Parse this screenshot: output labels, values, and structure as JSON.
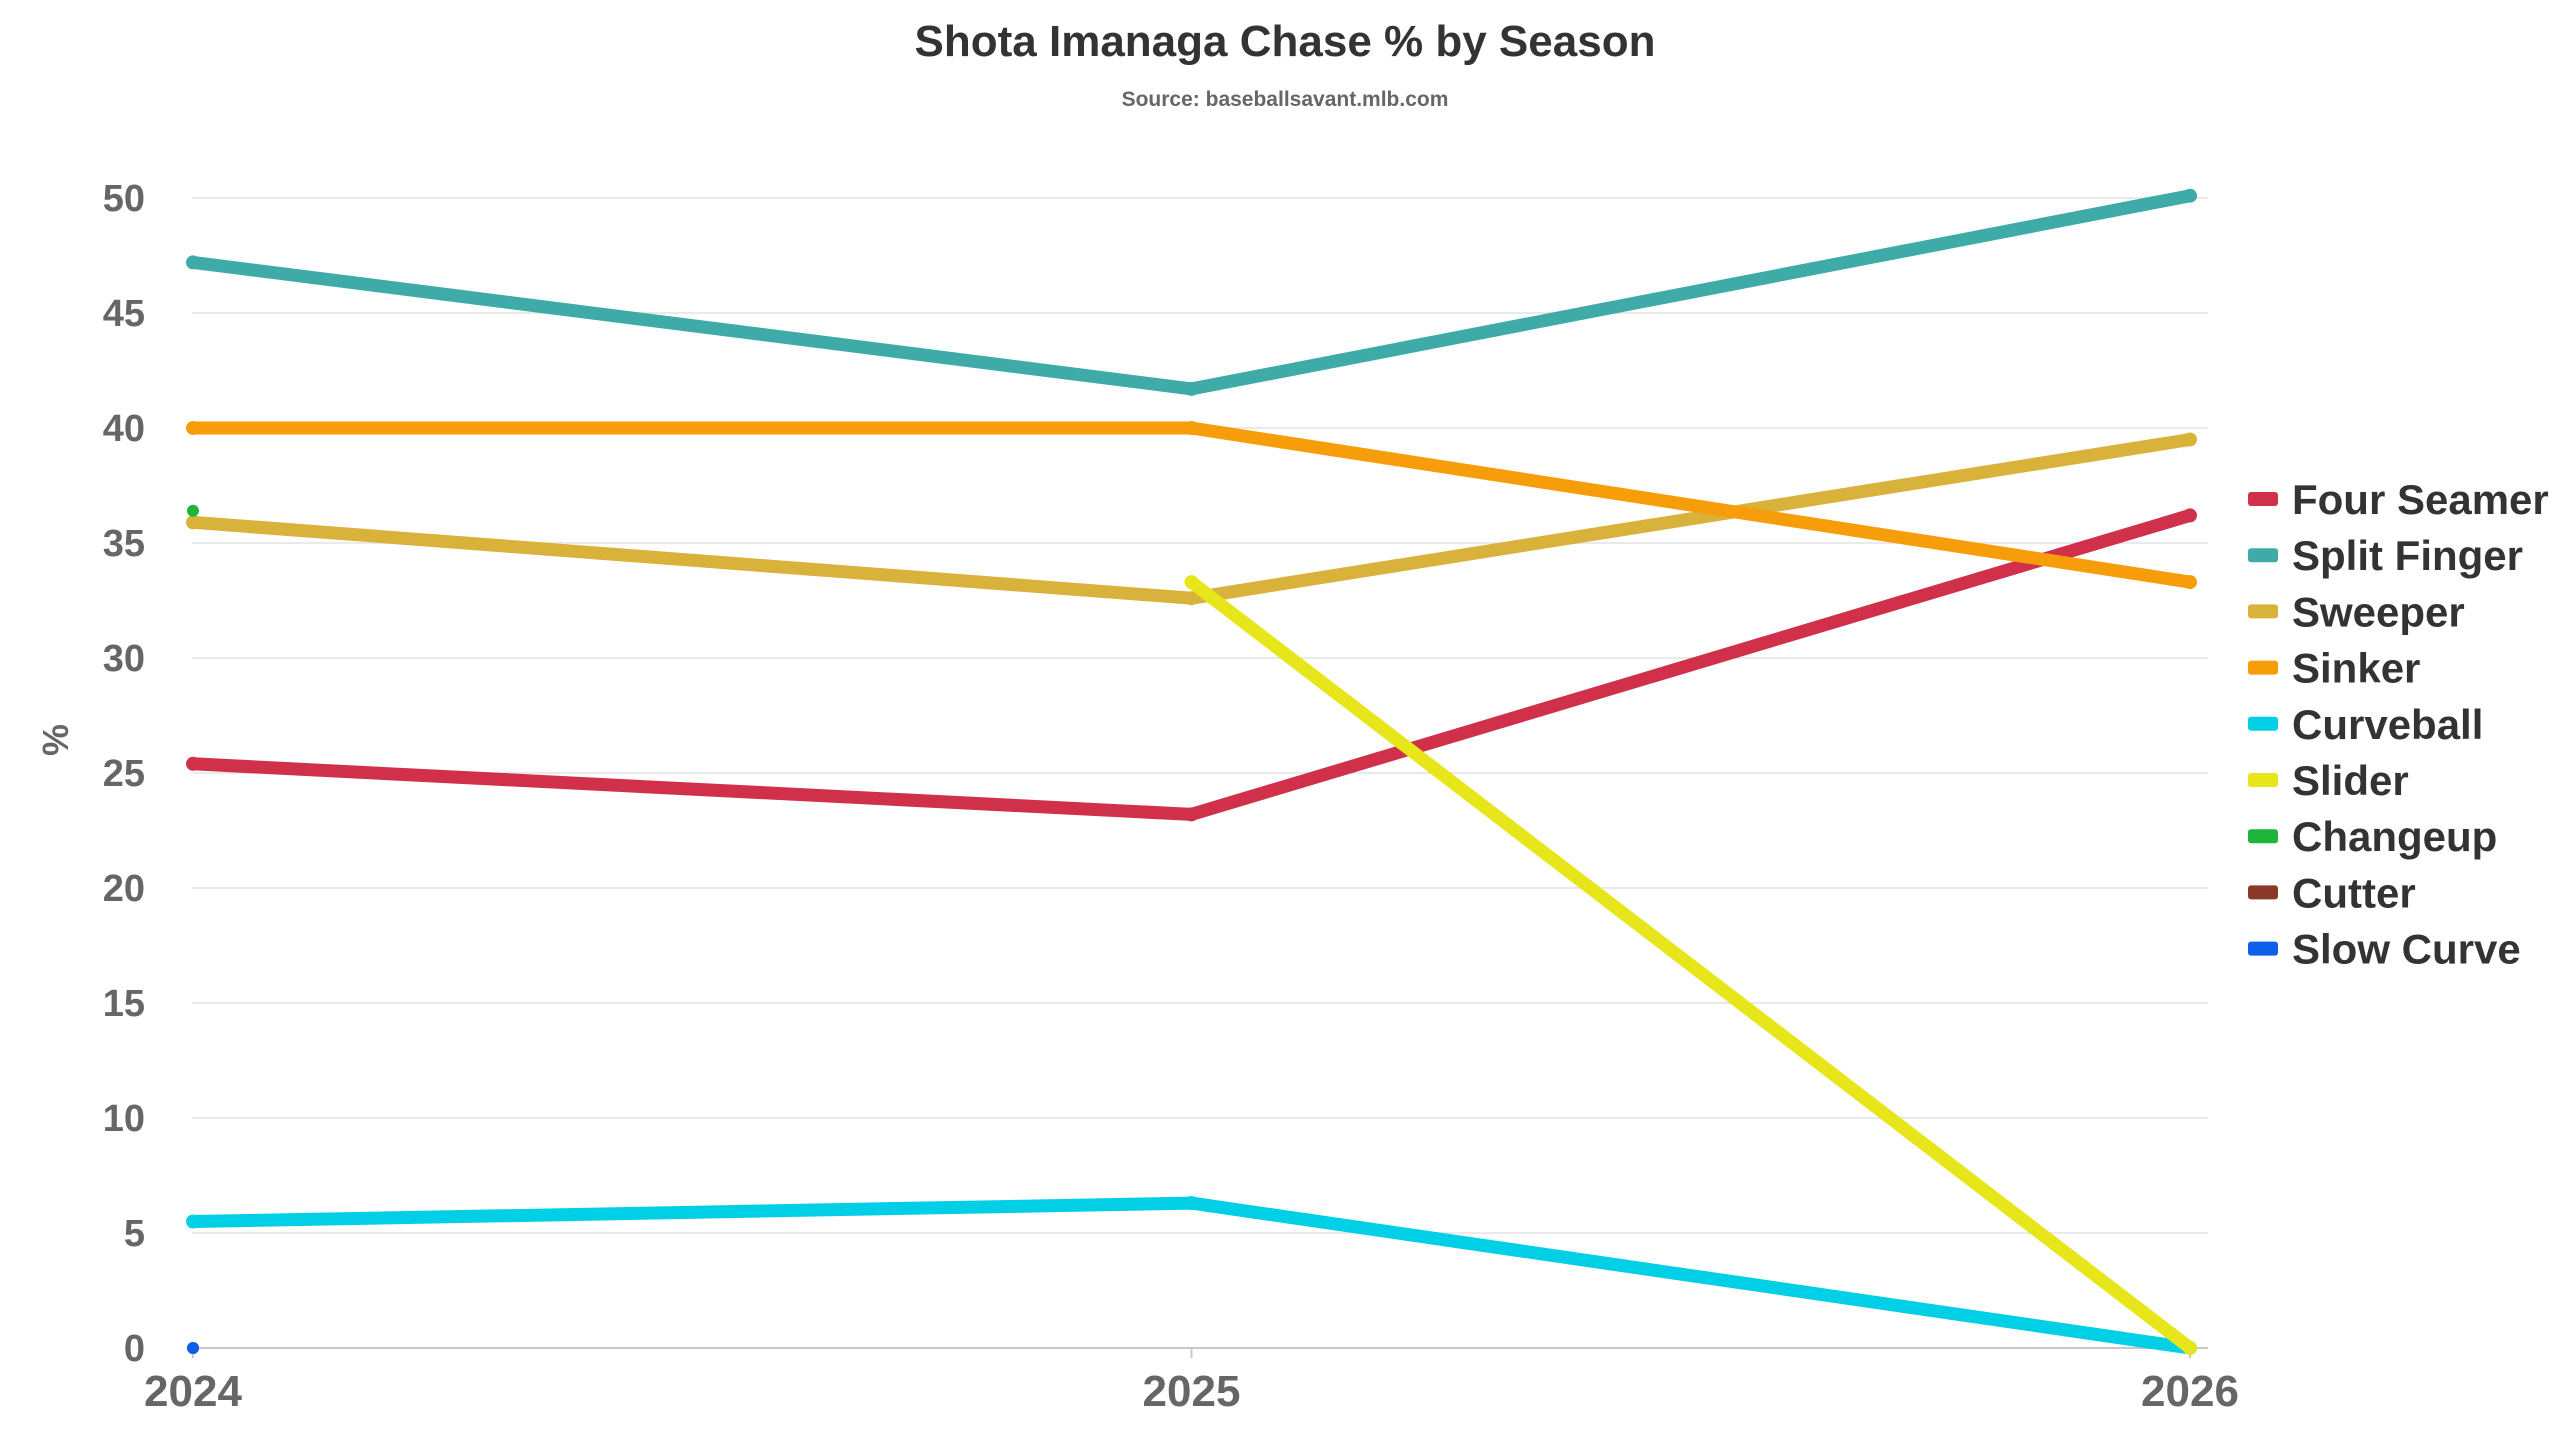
{
  "chart_data": {
    "type": "line",
    "title": "Shota Imanaga Chase % by Season",
    "subtitle": "Source: baseballsavant.mlb.com",
    "xlabel": "",
    "ylabel": "%",
    "x": [
      "2024",
      "2025",
      "2026"
    ],
    "ylim": [
      0,
      50
    ],
    "yticks": [
      0,
      5,
      10,
      15,
      20,
      25,
      30,
      35,
      40,
      45,
      50
    ],
    "grid": true,
    "legend_position": "right",
    "series": [
      {
        "name": "Four Seamer",
        "color": "#d1304a",
        "values": [
          25.4,
          23.2,
          36.2
        ]
      },
      {
        "name": "Split Finger",
        "color": "#3eaba8",
        "values": [
          47.2,
          41.7,
          50.1
        ]
      },
      {
        "name": "Sweeper",
        "color": "#d9b23c",
        "values": [
          35.9,
          32.6,
          39.5
        ]
      },
      {
        "name": "Sinker",
        "color": "#f79d0a",
        "values": [
          40.0,
          40.0,
          33.3
        ]
      },
      {
        "name": "Curveball",
        "color": "#00cfe6",
        "values": [
          5.5,
          6.3,
          0.0
        ]
      },
      {
        "name": "Slider",
        "color": "#e6e61a",
        "values": [
          null,
          33.3,
          0.0
        ]
      },
      {
        "name": "Changeup",
        "color": "#1eb53a",
        "values": [
          36.4,
          null,
          null
        ]
      },
      {
        "name": "Cutter",
        "color": "#8b3a2a",
        "values": [
          0.0,
          null,
          null
        ]
      },
      {
        "name": "Slow Curve",
        "color": "#0b5fe8",
        "values": [
          0.0,
          null,
          null
        ]
      }
    ]
  }
}
